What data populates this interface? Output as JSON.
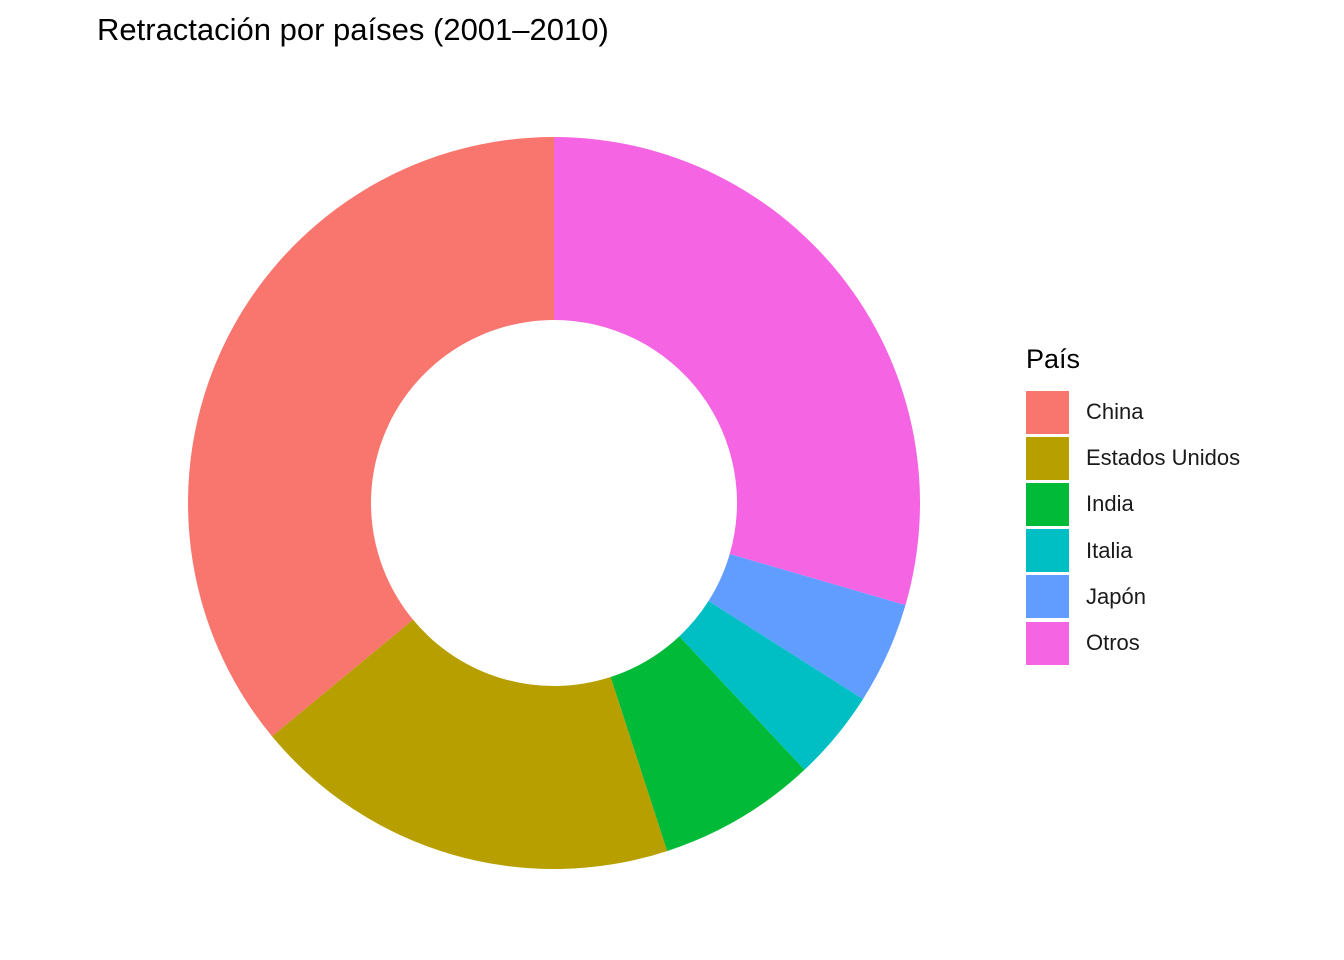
{
  "chart_data": {
    "type": "pie",
    "title": "Retractación por países (2001–2010)",
    "legend_title": "País",
    "legend_position": "right",
    "donut": true,
    "slices": [
      {
        "label": "China",
        "value": 36.0,
        "color": "#F8766D"
      },
      {
        "label": "Estados Unidos",
        "value": 19.0,
        "color": "#B79F00"
      },
      {
        "label": "India",
        "value": 7.0,
        "color": "#00BA38"
      },
      {
        "label": "Italia",
        "value": 4.0,
        "color": "#00BFC4"
      },
      {
        "label": "Japón",
        "value": 4.5,
        "color": "#619CFF"
      },
      {
        "label": "Otros",
        "value": 29.5,
        "color": "#F564E3"
      }
    ],
    "order_clockwise_from_top": [
      "Otros",
      "Japón",
      "Italia",
      "India",
      "Estados Unidos",
      "China"
    ]
  }
}
